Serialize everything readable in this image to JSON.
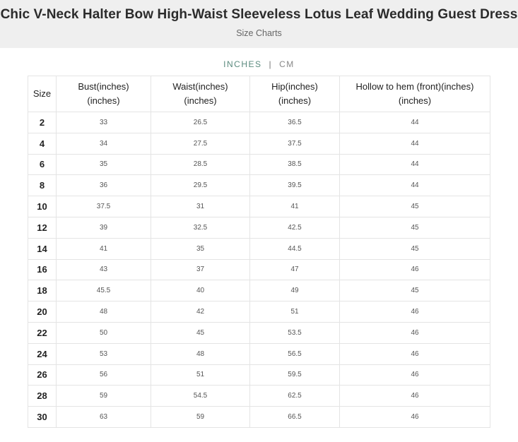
{
  "header": {
    "title": "Chic V-Neck Halter Bow High-Waist Sleeveless Lotus Leaf Wedding Guest Dress",
    "subtitle": "Size Charts"
  },
  "units": {
    "inches": "INCHES",
    "separator": "|",
    "cm": "CM"
  },
  "table": {
    "columns": [
      {
        "line1": "Size",
        "line2": ""
      },
      {
        "line1": "Bust(inches)",
        "line2": "(inches)"
      },
      {
        "line1": "Waist(inches)",
        "line2": "(inches)"
      },
      {
        "line1": "Hip(inches)",
        "line2": "(inches)"
      },
      {
        "line1": "Hollow to hem (front)(inches)",
        "line2": "(inches)"
      }
    ],
    "rows": [
      [
        "2",
        "33",
        "26.5",
        "36.5",
        "44"
      ],
      [
        "4",
        "34",
        "27.5",
        "37.5",
        "44"
      ],
      [
        "6",
        "35",
        "28.5",
        "38.5",
        "44"
      ],
      [
        "8",
        "36",
        "29.5",
        "39.5",
        "44"
      ],
      [
        "10",
        "37.5",
        "31",
        "41",
        "45"
      ],
      [
        "12",
        "39",
        "32.5",
        "42.5",
        "45"
      ],
      [
        "14",
        "41",
        "35",
        "44.5",
        "45"
      ],
      [
        "16",
        "43",
        "37",
        "47",
        "46"
      ],
      [
        "18",
        "45.5",
        "40",
        "49",
        "45"
      ],
      [
        "20",
        "48",
        "42",
        "51",
        "46"
      ],
      [
        "22",
        "50",
        "45",
        "53.5",
        "46"
      ],
      [
        "24",
        "53",
        "48",
        "56.5",
        "46"
      ],
      [
        "26",
        "56",
        "51",
        "59.5",
        "46"
      ],
      [
        "28",
        "59",
        "54.5",
        "62.5",
        "46"
      ],
      [
        "30",
        "63",
        "59",
        "66.5",
        "46"
      ]
    ]
  }
}
